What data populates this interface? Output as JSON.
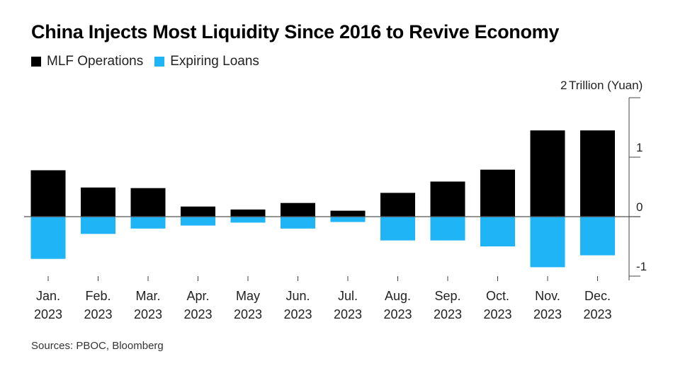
{
  "title": "China Injects Most Liquidity Since 2016 to Revive Economy",
  "source": "Sources: PBOC, Bloomberg",
  "colors": {
    "mlf": "#000000",
    "loans": "#1eb4f5",
    "axis": "#444444",
    "text": "#222222"
  },
  "chart_data": {
    "type": "bar",
    "title": "China Injects Most Liquidity Since 2016 to Revive Economy",
    "unit_label": "Trillion (Yuan)",
    "categories": [
      [
        "Jan.",
        "2023"
      ],
      [
        "Feb.",
        "2023"
      ],
      [
        "Mar.",
        "2023"
      ],
      [
        "Apr.",
        "2023"
      ],
      [
        "May",
        "2023"
      ],
      [
        "Jun.",
        "2023"
      ],
      [
        "Jul.",
        "2023"
      ],
      [
        "Aug.",
        "2023"
      ],
      [
        "Sep.",
        "2023"
      ],
      [
        "Oct.",
        "2023"
      ],
      [
        "Nov.",
        "2023"
      ],
      [
        "Dec.",
        "2023"
      ]
    ],
    "series": [
      {
        "name": "MLF Operations",
        "color": "#000000",
        "values": [
          0.78,
          0.49,
          0.48,
          0.17,
          0.12,
          0.23,
          0.1,
          0.4,
          0.59,
          0.79,
          1.45,
          1.45
        ]
      },
      {
        "name": "Expiring Loans",
        "color": "#1eb4f5",
        "values": [
          -0.71,
          -0.29,
          -0.2,
          -0.15,
          -0.1,
          -0.2,
          -0.09,
          -0.4,
          -0.4,
          -0.5,
          -0.85,
          -0.65
        ]
      }
    ],
    "yticks": [
      {
        "value": 2,
        "label": "2"
      },
      {
        "value": 1,
        "label": "1"
      },
      {
        "value": 0,
        "label": "0"
      },
      {
        "value": -1,
        "label": "-1"
      }
    ],
    "ylim": [
      -1,
      2
    ],
    "grid": false,
    "legend": "top-left"
  }
}
